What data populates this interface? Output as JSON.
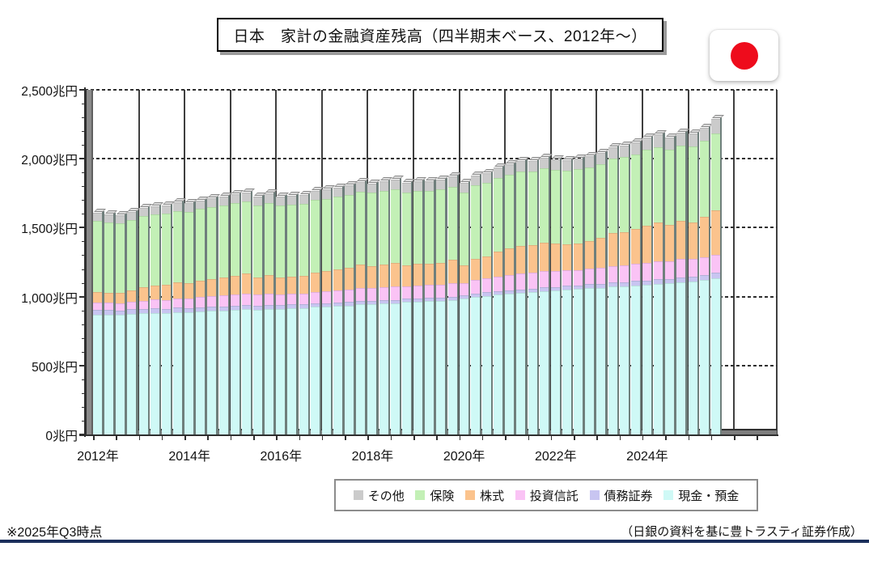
{
  "title": "日本　家計の金融資産残高（四半期末ベース、2012年～）",
  "flag": {
    "icon": "japan-flag",
    "circle_color": "#ee0c1c"
  },
  "footnote_left": "※2025年Q3時点",
  "footnote_right": "（日銀の資料を基に豊トラスティ証券作成）",
  "colors": {
    "divider_navy": "#1b2f5b",
    "gridline": "#3f3f3f",
    "wall_gray": "#8a8a8a"
  },
  "chart_data": {
    "type": "bar",
    "stacked": true,
    "unit": "兆円",
    "ylim": [
      0,
      2500
    ],
    "grid": "horizontal-dashed and vertical-solid yearly",
    "legend_position": "bottom",
    "y_ticks": [
      0,
      500,
      1000,
      1500,
      2000,
      2500
    ],
    "y_tick_labels": [
      "0兆円",
      "500兆円",
      "1,000兆円",
      "1,500兆円",
      "2,000兆円",
      "2,500兆円"
    ],
    "x_tick_labels": [
      "2012年",
      "2014年",
      "2016年",
      "2018年",
      "2020年",
      "2022年",
      "2024年"
    ],
    "legend_order": [
      "その他",
      "保険",
      "株式",
      "投資信託",
      "債務証券",
      "現金・預金"
    ],
    "quarters": [
      "2012Q1",
      "2012Q2",
      "2012Q3",
      "2012Q4",
      "2013Q1",
      "2013Q2",
      "2013Q3",
      "2013Q4",
      "2014Q1",
      "2014Q2",
      "2014Q3",
      "2014Q4",
      "2015Q1",
      "2015Q2",
      "2015Q3",
      "2015Q4",
      "2016Q1",
      "2016Q2",
      "2016Q3",
      "2016Q4",
      "2017Q1",
      "2017Q2",
      "2017Q3",
      "2017Q4",
      "2018Q1",
      "2018Q2",
      "2018Q3",
      "2018Q4",
      "2019Q1",
      "2019Q2",
      "2019Q3",
      "2019Q4",
      "2020Q1",
      "2020Q2",
      "2020Q3",
      "2020Q4",
      "2021Q1",
      "2021Q2",
      "2021Q3",
      "2021Q4",
      "2022Q1",
      "2022Q2",
      "2022Q3",
      "2022Q4",
      "2023Q1",
      "2023Q2",
      "2023Q3",
      "2023Q4",
      "2024Q1",
      "2024Q2",
      "2024Q3",
      "2024Q4",
      "2025Q1",
      "2025Q2",
      "2025Q3"
    ],
    "series": [
      {
        "name": "現金・預金",
        "color": "#cff9f6",
        "values": [
          871,
          868,
          866,
          875,
          878,
          882,
          880,
          888,
          885,
          893,
          895,
          900,
          902,
          908,
          905,
          912,
          910,
          916,
          918,
          925,
          928,
          932,
          935,
          943,
          945,
          950,
          952,
          960,
          962,
          966,
          968,
          975,
          985,
          998,
          1005,
          1015,
          1020,
          1028,
          1032,
          1040,
          1045,
          1052,
          1055,
          1062,
          1065,
          1072,
          1075,
          1082,
          1085,
          1092,
          1095,
          1105,
          1110,
          1122,
          1135
        ]
      },
      {
        "name": "債務証券",
        "color": "#c8c5f1",
        "values": [
          35,
          35,
          34,
          34,
          33,
          33,
          32,
          32,
          31,
          31,
          30,
          30,
          29,
          29,
          28,
          28,
          27,
          27,
          26,
          26,
          25,
          25,
          25,
          24,
          24,
          24,
          24,
          24,
          24,
          24,
          24,
          24,
          24,
          25,
          25,
          25,
          25,
          25,
          26,
          26,
          26,
          27,
          27,
          28,
          28,
          29,
          30,
          31,
          32,
          33,
          34,
          35,
          35,
          36,
          36
        ]
      },
      {
        "name": "投資信託",
        "color": "#fac3f5",
        "values": [
          53,
          51,
          52,
          55,
          60,
          63,
          65,
          68,
          70,
          73,
          76,
          78,
          83,
          86,
          80,
          82,
          78,
          77,
          79,
          84,
          86,
          89,
          92,
          96,
          94,
          96,
          99,
          90,
          92,
          93,
          95,
          99,
          88,
          96,
          100,
          106,
          110,
          113,
          114,
          117,
          113,
          110,
          111,
          113,
          117,
          122,
          123,
          126,
          130,
          133,
          128,
          131,
          126,
          128,
          129
        ]
      },
      {
        "name": "株式",
        "color": "#fbc38d",
        "values": [
          76,
          72,
          74,
          82,
          98,
          104,
          108,
          116,
          112,
          118,
          124,
          128,
          138,
          142,
          128,
          135,
          124,
          122,
          128,
          140,
          144,
          150,
          157,
          168,
          160,
          164,
          172,
          152,
          158,
          156,
          158,
          168,
          130,
          155,
          162,
          180,
          196,
          204,
          202,
          210,
          200,
          190,
          194,
          200,
          214,
          240,
          242,
          250,
          270,
          280,
          262,
          276,
          268,
          290,
          324
        ]
      },
      {
        "name": "保険",
        "color": "#c3f0b6",
        "values": [
          512,
          511,
          508,
          512,
          514,
          514,
          516,
          518,
          518,
          520,
          522,
          523,
          524,
          525,
          522,
          524,
          522,
          523,
          524,
          526,
          527,
          528,
          529,
          531,
          530,
          531,
          532,
          530,
          531,
          530,
          531,
          532,
          528,
          531,
          532,
          534,
          535,
          536,
          536,
          538,
          536,
          534,
          535,
          536,
          538,
          541,
          542,
          544,
          546,
          548,
          547,
          549,
          548,
          552,
          560
        ]
      },
      {
        "name": "その他",
        "color": "#cbcbcb",
        "values": [
          59,
          57,
          56,
          58,
          60,
          61,
          62,
          63,
          62,
          63,
          64,
          64,
          65,
          65,
          64,
          65,
          64,
          64,
          65,
          66,
          67,
          68,
          68,
          70,
          69,
          70,
          71,
          69,
          70,
          70,
          71,
          72,
          70,
          72,
          73,
          74,
          75,
          76,
          76,
          77,
          76,
          76,
          77,
          78,
          80,
          82,
          83,
          84,
          88,
          90,
          89,
          92,
          94,
          98,
          106
        ]
      }
    ]
  }
}
